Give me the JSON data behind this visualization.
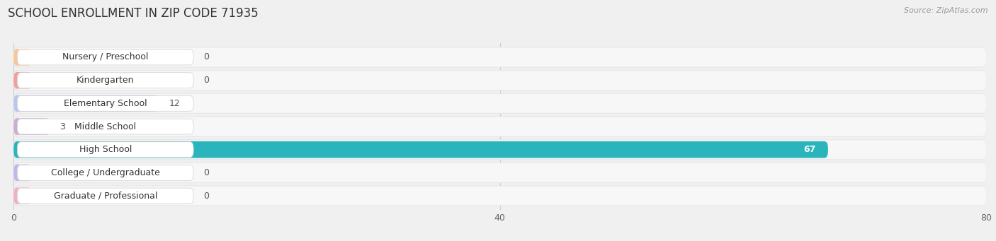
{
  "title": "SCHOOL ENROLLMENT IN ZIP CODE 71935",
  "source": "Source: ZipAtlas.com",
  "categories": [
    "Nursery / Preschool",
    "Kindergarten",
    "Elementary School",
    "Middle School",
    "High School",
    "College / Undergraduate",
    "Graduate / Professional"
  ],
  "values": [
    0,
    0,
    12,
    3,
    67,
    0,
    0
  ],
  "bar_colors": [
    "#f5c898",
    "#f0a0a0",
    "#b8c8ec",
    "#c8b0d4",
    "#2ab5bc",
    "#c0b8e8",
    "#f0b0c8"
  ],
  "row_bg_color": "#ebebeb",
  "row_white_color": "#ffffff",
  "xlim_max": 80,
  "xticks": [
    0,
    40,
    80
  ],
  "title_fontsize": 12,
  "source_fontsize": 8,
  "label_fontsize": 9,
  "value_fontsize": 9,
  "fig_width": 14.06,
  "fig_height": 3.41,
  "value_white_idx": 4
}
